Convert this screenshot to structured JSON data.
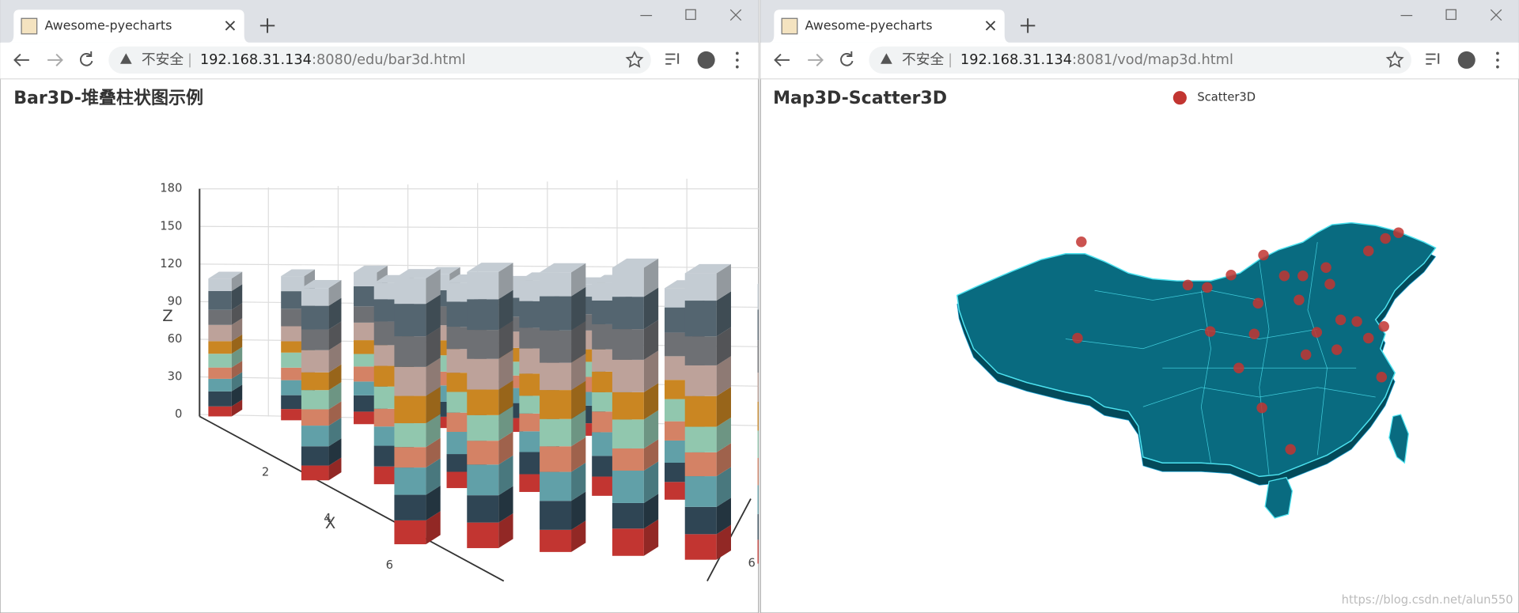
{
  "windows": [
    {
      "tab_title": "Awesome-pyecharts",
      "security": "不安全",
      "url_host": "192.168.31.134",
      "url_rest": ":8080/edu/bar3d.html",
      "chart_data": {
        "type": "bar3d",
        "title": "Bar3D-堆叠柱状图示例",
        "xlabel": "X",
        "zlabel": "Z",
        "zticks": [
          0,
          30,
          60,
          90,
          120,
          150,
          180
        ],
        "zlim": [
          0,
          180
        ],
        "xticks": [
          2,
          4,
          6
        ],
        "yticks": [
          6
        ],
        "x": [
          0,
          0,
          0,
          0,
          0,
          0,
          3,
          3,
          3,
          3,
          3,
          3,
          6,
          6,
          6,
          6,
          6,
          6
        ],
        "y": [
          0,
          1,
          2,
          3,
          4,
          5,
          0,
          1,
          2,
          3,
          4,
          5,
          0,
          1,
          2,
          3,
          4,
          5
        ],
        "series": [
          {
            "color": "#c23531",
            "values": [
              8,
              9,
              10,
              9,
              11,
              10,
              10,
              12,
              11,
              12,
              13,
              12,
              14,
              15,
              13,
              16,
              15,
              14
            ]
          },
          {
            "color": "#2f4554",
            "values": [
              12,
              11,
              13,
              12,
              12,
              14,
              13,
              14,
              12,
              15,
              14,
              13,
              15,
              16,
              17,
              15,
              16,
              15
            ]
          },
          {
            "color": "#61a0a8",
            "values": [
              10,
              12,
              11,
              13,
              12,
              11,
              14,
              13,
              15,
              14,
              16,
              15,
              16,
              18,
              17,
              19,
              18,
              17
            ]
          },
          {
            "color": "#d48265",
            "values": [
              9,
              10,
              12,
              11,
              10,
              12,
              11,
              12,
              13,
              12,
              14,
              13,
              12,
              14,
              15,
              13,
              14,
              16
            ]
          },
          {
            "color": "#91c7ae",
            "values": [
              11,
              12,
              10,
              13,
              11,
              12,
              13,
              15,
              14,
              12,
              13,
              15,
              14,
              15,
              16,
              17,
              15,
              16
            ]
          },
          {
            "color": "#ca8622",
            "values": [
              10,
              9,
              11,
              12,
              11,
              10,
              12,
              14,
              13,
              15,
              14,
              13,
              16,
              15,
              17,
              16,
              18,
              17
            ]
          },
          {
            "color": "#bda29a",
            "values": [
              13,
              12,
              14,
              12,
              13,
              15,
              15,
              14,
              16,
              17,
              15,
              16,
              17,
              18,
              16,
              19,
              18,
              17
            ]
          },
          {
            "color": "#6e7074",
            "values": [
              12,
              14,
              13,
              15,
              12,
              13,
              14,
              16,
              15,
              14,
              17,
              16,
              18,
              17,
              19,
              18,
              17,
              19
            ]
          },
          {
            "color": "#546570",
            "values": [
              15,
              14,
              16,
              13,
              15,
              14,
              16,
              15,
              17,
              18,
              16,
              17,
              19,
              18,
              20,
              19,
              21,
              18
            ]
          },
          {
            "color": "#c4ccd3",
            "values": [
              10,
              12,
              11,
              13,
              12,
              10,
              12,
              11,
              13,
              14,
              12,
              13,
              15,
              16,
              14,
              17,
              16,
              15
            ]
          }
        ]
      }
    },
    {
      "tab_title": "Awesome-pyecharts",
      "security": "不安全",
      "url_host": "192.168.31.134",
      "url_rest": ":8081/vod/map3d.html",
      "chart_data": {
        "type": "scatter3d_map",
        "title": "Map3D-Scatter3D",
        "legend": "Scatter3D",
        "color": "#c23531",
        "lon": [
          89.1,
          112.7,
          128.5,
          130.2,
          126.3,
          120.8,
          108.5,
          102.9,
          105.4,
          115.4,
          117.8,
          121.3,
          112.0,
          117.3,
          122.7,
          124.8,
          128.3,
          126.3,
          119.6,
          111.5,
          105.8,
          88.6,
          118.2,
          122.2,
          109.5,
          128.0,
          112.5,
          116.2
        ],
        "lat": [
          50.7,
          49.1,
          51.1,
          51.8,
          49.6,
          47.6,
          46.7,
          45.5,
          45.2,
          46.6,
          46.6,
          45.6,
          43.3,
          43.7,
          41.3,
          41.1,
          40.5,
          39.1,
          39.8,
          39.6,
          39.9,
          39.1,
          37.1,
          37.7,
          35.5,
          34.4,
          30.7,
          25.7
        ]
      }
    }
  ],
  "watermark": "https://blog.csdn.net/alun550"
}
